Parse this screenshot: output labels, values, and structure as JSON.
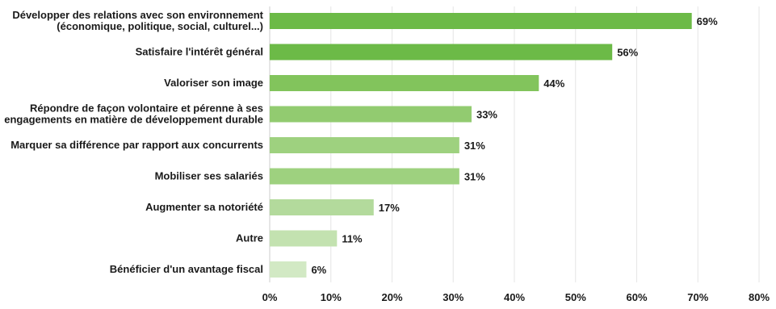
{
  "chart_data": {
    "type": "bar",
    "orientation": "horizontal",
    "categories": [
      [
        "Développer des relations avec son environnement",
        "(économique, politique, social, culturel...)"
      ],
      [
        "Satisfaire l'intérêt général"
      ],
      [
        "Valoriser son image"
      ],
      [
        "Répondre de façon volontaire et pérenne à ses",
        "engagements en matière de développement durable"
      ],
      [
        "Marquer sa différence par rapport aux concurrents"
      ],
      [
        "Mobiliser ses salariés"
      ],
      [
        "Augmenter sa notoriété"
      ],
      [
        "Autre"
      ],
      [
        "Bénéficier d'un avantage fiscal"
      ]
    ],
    "values": [
      69,
      56,
      44,
      33,
      31,
      31,
      17,
      11,
      6
    ],
    "value_labels": [
      "69%",
      "56%",
      "44%",
      "33%",
      "31%",
      "31%",
      "17%",
      "11%",
      "6%"
    ],
    "bar_colors": [
      "#6cba47",
      "#6cba47",
      "#82c45c",
      "#92cb70",
      "#9ed17f",
      "#9ed17f",
      "#b3da9c",
      "#c3e2b0",
      "#d2e9c4"
    ],
    "xlim": [
      0,
      80
    ],
    "xticks": [
      0,
      10,
      20,
      30,
      40,
      50,
      60,
      70,
      80
    ],
    "xtick_labels": [
      "0%",
      "10%",
      "20%",
      "30%",
      "40%",
      "50%",
      "60%",
      "70%",
      "80%"
    ],
    "title": "",
    "xlabel": "",
    "ylabel": "",
    "grid": true,
    "legend": "none"
  }
}
